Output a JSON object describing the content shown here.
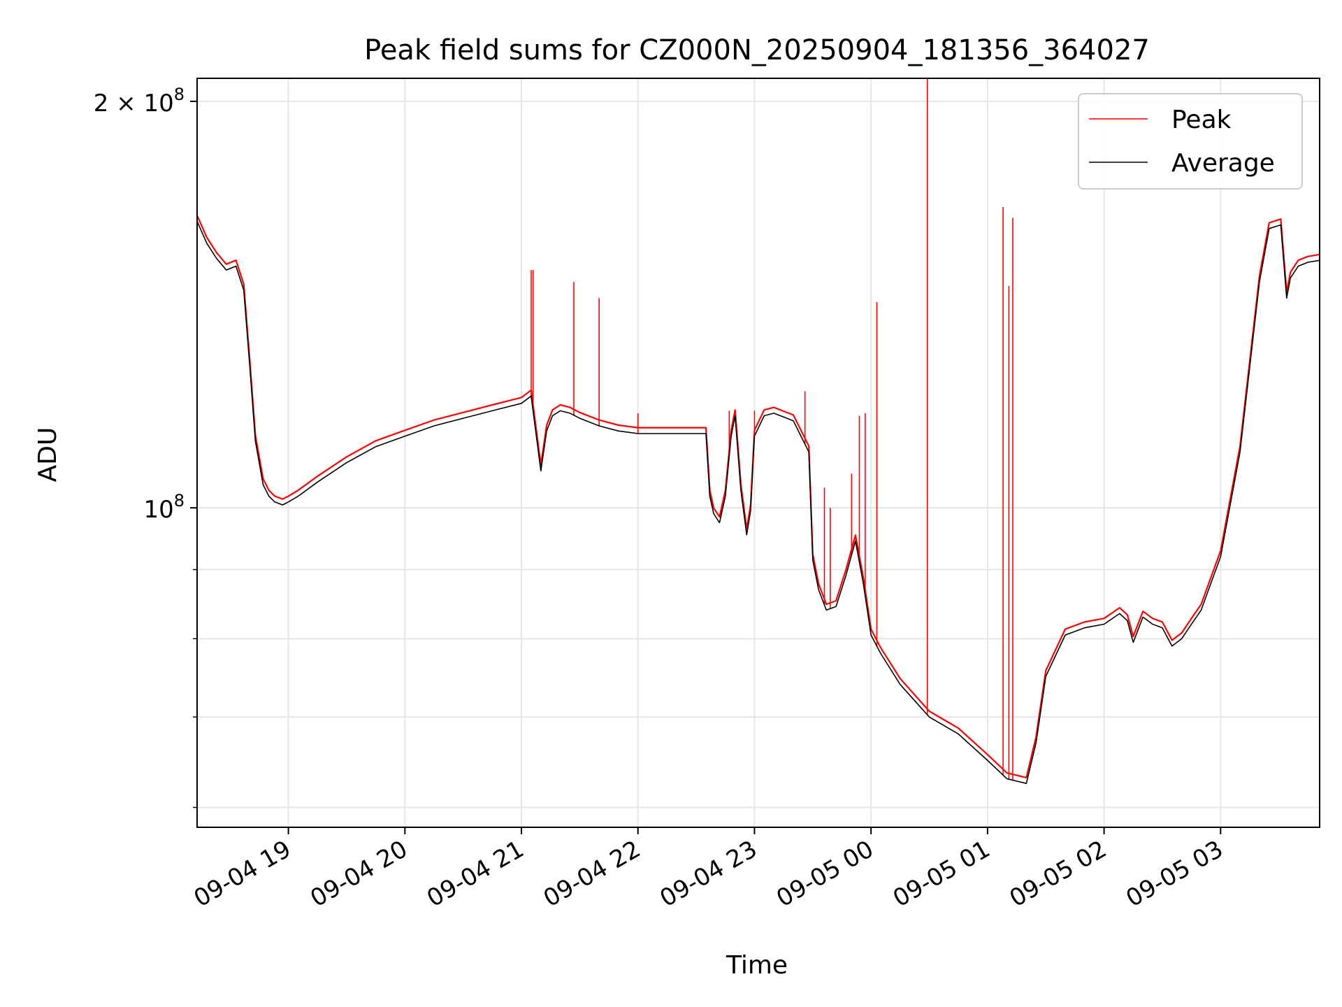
{
  "chart_data": {
    "type": "line",
    "title": "Peak field sums for CZ000N_20250904_181356_364027",
    "xlabel": "Time",
    "ylabel": "ADU",
    "y_scale": "log",
    "ylim": [
      58000000,
      208000000
    ],
    "xlim": [
      "2025-09-04 18:13",
      "2025-09-05 03:51"
    ],
    "grid": true,
    "legend": {
      "position": "top-right",
      "entries": [
        "Peak",
        "Average"
      ]
    },
    "x_ticks": [
      "09-04 19",
      "09-04 20",
      "09-04 21",
      "09-04 22",
      "09-04 23",
      "09-05 00",
      "09-05 01",
      "09-05 02",
      "09-05 03"
    ],
    "x_tick_times": [
      "2025-09-04 19:00",
      "2025-09-04 20:00",
      "2025-09-04 21:00",
      "2025-09-04 22:00",
      "2025-09-04 23:00",
      "2025-09-05 00:00",
      "2025-09-05 01:00",
      "2025-09-05 02:00",
      "2025-09-05 03:00"
    ],
    "y_ticks": [
      {
        "value": 100000000,
        "base": "10",
        "exp": "8",
        "mant": ""
      },
      {
        "value": 200000000,
        "base": "10",
        "exp": "8",
        "mant": "2 × "
      }
    ],
    "y_minor_ticks": [
      60000000,
      70000000,
      80000000,
      90000000
    ],
    "series": [
      {
        "name": "Average",
        "color": "#000000",
        "x": [
          "2025-09-04 18:13",
          "2025-09-04 18:18",
          "2025-09-04 18:23",
          "2025-09-04 18:28",
          "2025-09-04 18:33",
          "2025-09-04 18:37",
          "2025-09-04 18:40",
          "2025-09-04 18:43",
          "2025-09-04 18:47",
          "2025-09-04 18:50",
          "2025-09-04 18:53",
          "2025-09-04 18:57",
          "2025-09-04 19:00",
          "2025-09-04 19:05",
          "2025-09-04 19:15",
          "2025-09-04 19:30",
          "2025-09-04 19:45",
          "2025-09-04 20:00",
          "2025-09-04 20:15",
          "2025-09-04 20:30",
          "2025-09-04 20:45",
          "2025-09-04 21:00",
          "2025-09-04 21:05",
          "2025-09-04 21:10",
          "2025-09-04 21:13",
          "2025-09-04 21:16",
          "2025-09-04 21:20",
          "2025-09-04 21:25",
          "2025-09-04 21:30",
          "2025-09-04 21:40",
          "2025-09-04 21:50",
          "2025-09-04 22:00",
          "2025-09-04 22:20",
          "2025-09-04 22:35",
          "2025-09-04 22:37",
          "2025-09-04 22:39",
          "2025-09-04 22:42",
          "2025-09-04 22:45",
          "2025-09-04 22:48",
          "2025-09-04 22:50",
          "2025-09-04 22:53",
          "2025-09-04 22:56",
          "2025-09-04 22:58",
          "2025-09-04 23:00",
          "2025-09-04 23:05",
          "2025-09-04 23:10",
          "2025-09-04 23:20",
          "2025-09-04 23:28",
          "2025-09-04 23:30",
          "2025-09-04 23:33",
          "2025-09-04 23:37",
          "2025-09-04 23:42",
          "2025-09-04 23:47",
          "2025-09-04 23:52",
          "2025-09-04 23:56",
          "2025-09-05 00:00",
          "2025-09-05 00:05",
          "2025-09-05 00:15",
          "2025-09-05 00:30",
          "2025-09-05 00:45",
          "2025-09-05 01:00",
          "2025-09-05 01:10",
          "2025-09-05 01:20",
          "2025-09-05 01:25",
          "2025-09-05 01:30",
          "2025-09-05 01:40",
          "2025-09-05 01:50",
          "2025-09-05 02:00",
          "2025-09-05 02:08",
          "2025-09-05 02:12",
          "2025-09-05 02:15",
          "2025-09-05 02:20",
          "2025-09-05 02:25",
          "2025-09-05 02:30",
          "2025-09-05 02:35",
          "2025-09-05 02:40",
          "2025-09-05 02:45",
          "2025-09-05 02:50",
          "2025-09-05 03:00",
          "2025-09-05 03:10",
          "2025-09-05 03:20",
          "2025-09-05 03:25",
          "2025-09-05 03:31",
          "2025-09-05 03:34",
          "2025-09-05 03:36",
          "2025-09-05 03:40",
          "2025-09-05 03:45",
          "2025-09-05 03:51"
        ],
        "values": [
          163000000,
          157000000,
          153000000,
          150000000,
          151000000,
          145000000,
          128000000,
          112000000,
          104000000,
          102000000,
          101000000,
          100500000,
          101000000,
          102000000,
          104500000,
          108000000,
          111000000,
          113000000,
          115000000,
          116500000,
          118000000,
          119500000,
          121000000,
          106500000,
          114000000,
          117000000,
          118000000,
          117500000,
          116500000,
          115000000,
          114000000,
          113500000,
          113500000,
          113500000,
          102000000,
          99000000,
          97500000,
          102000000,
          113000000,
          117000000,
          103000000,
          95500000,
          99500000,
          113000000,
          117000000,
          117500000,
          116000000,
          110000000,
          91500000,
          87000000,
          84000000,
          84500000,
          89000000,
          94500000,
          88000000,
          80500000,
          78000000,
          74000000,
          70000000,
          68000000,
          65000000,
          63000000,
          62500000,
          67000000,
          75000000,
          80500000,
          81500000,
          82000000,
          83500000,
          82500000,
          79500000,
          83000000,
          82000000,
          81500000,
          79000000,
          80000000,
          82000000,
          84000000,
          92000000,
          110000000,
          147000000,
          161000000,
          162000000,
          143000000,
          148000000,
          151000000,
          152000000,
          152500000
        ]
      },
      {
        "name": "Peak",
        "color": "#ff0000",
        "spikes": [
          {
            "x": "2025-09-04 18:37",
            "value": 145000000
          },
          {
            "x": "2025-09-04 21:05",
            "value": 150000000
          },
          {
            "x": "2025-09-04 21:06",
            "value": 150000000
          },
          {
            "x": "2025-09-04 21:27",
            "value": 147000000
          },
          {
            "x": "2025-09-04 21:40",
            "value": 143000000
          },
          {
            "x": "2025-09-04 22:00",
            "value": 117500000
          },
          {
            "x": "2025-09-04 22:47",
            "value": 118000000
          },
          {
            "x": "2025-09-04 23:00",
            "value": 118000000
          },
          {
            "x": "2025-09-04 23:26",
            "value": 122000000
          },
          {
            "x": "2025-09-04 23:36",
            "value": 103500000
          },
          {
            "x": "2025-09-04 23:39",
            "value": 100000000
          },
          {
            "x": "2025-09-04 23:50",
            "value": 106000000
          },
          {
            "x": "2025-09-04 23:54",
            "value": 117000000
          },
          {
            "x": "2025-09-04 23:57",
            "value": 117500000
          },
          {
            "x": "2025-09-05 00:03",
            "value": 142000000
          },
          {
            "x": "2025-09-05 00:29",
            "value": 208000000
          },
          {
            "x": "2025-09-05 01:08",
            "value": 167000000
          },
          {
            "x": "2025-09-05 01:11",
            "value": 146000000
          },
          {
            "x": "2025-09-05 01:13",
            "value": 164000000
          }
        ]
      }
    ]
  }
}
